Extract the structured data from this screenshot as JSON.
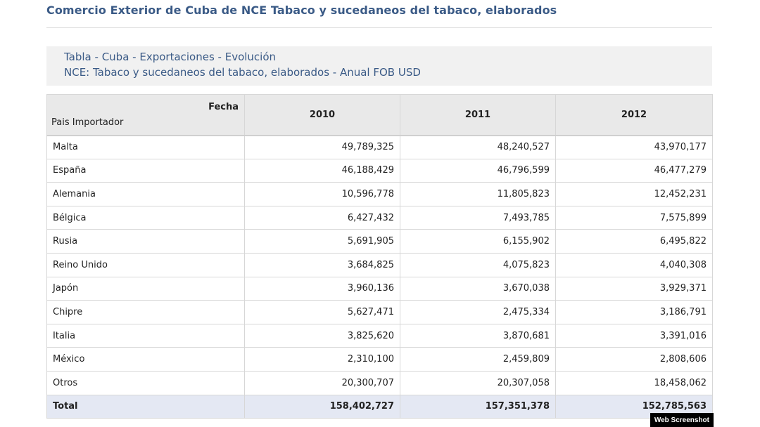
{
  "page": {
    "title": "Comercio Exterior de Cuba de NCE Tabaco y sucedaneos del tabaco, elaborados"
  },
  "caption": {
    "line1": "Tabla - Cuba - Exportaciones - Evolución",
    "line2": "NCE: Tabaco y sucedaneos del tabaco, elaborados - Anual FOB USD"
  },
  "table": {
    "corner_top": "Fecha",
    "corner_bottom": "Pais Importador",
    "years": [
      "2010",
      "2011",
      "2012"
    ],
    "rows": [
      {
        "country": "Malta",
        "values": [
          "49,789,325",
          "48,240,527",
          "43,970,177"
        ]
      },
      {
        "country": "España",
        "values": [
          "46,188,429",
          "46,796,599",
          "46,477,279"
        ]
      },
      {
        "country": "Alemania",
        "values": [
          "10,596,778",
          "11,805,823",
          "12,452,231"
        ]
      },
      {
        "country": "Bélgica",
        "values": [
          "6,427,432",
          "7,493,785",
          "7,575,899"
        ]
      },
      {
        "country": "Rusia",
        "values": [
          "5,691,905",
          "6,155,902",
          "6,495,822"
        ]
      },
      {
        "country": "Reino Unido",
        "values": [
          "3,684,825",
          "4,075,823",
          "4,040,308"
        ]
      },
      {
        "country": "Japón",
        "values": [
          "3,960,136",
          "3,670,038",
          "3,929,371"
        ]
      },
      {
        "country": "Chipre",
        "values": [
          "5,627,471",
          "2,475,334",
          "3,186,791"
        ]
      },
      {
        "country": "Italia",
        "values": [
          "3,825,620",
          "3,870,681",
          "3,391,016"
        ]
      },
      {
        "country": "México",
        "values": [
          "2,310,100",
          "2,459,809",
          "2,808,606"
        ]
      },
      {
        "country": "Otros",
        "values": [
          "20,300,707",
          "20,307,058",
          "18,458,062"
        ]
      }
    ],
    "total": {
      "label": "Total",
      "values": [
        "158,402,727",
        "157,351,378",
        "152,785,563"
      ]
    }
  },
  "badge": "Web Screenshot"
}
